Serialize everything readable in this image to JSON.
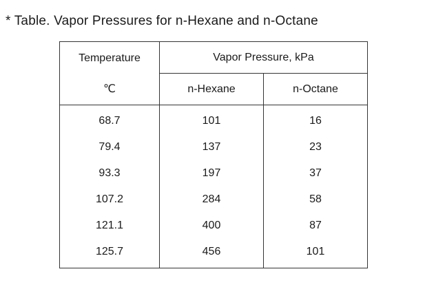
{
  "page": {
    "title": "* Table. Vapor Pressures for n-Hexane and n-Octane"
  },
  "table": {
    "header": {
      "temperature_label": "Temperature",
      "temperature_unit": "℃",
      "pressure_label": "Vapor Pressure, kPa",
      "col_hexane": "n-Hexane",
      "col_octane": "n-Octane"
    },
    "rows": [
      {
        "temp": "68.7",
        "hexane": "101",
        "octane": "16"
      },
      {
        "temp": "79.4",
        "hexane": "137",
        "octane": "23"
      },
      {
        "temp": "93.3",
        "hexane": "197",
        "octane": "37"
      },
      {
        "temp": "107.2",
        "hexane": "284",
        "octane": "58"
      },
      {
        "temp": "121.1",
        "hexane": "400",
        "octane": "87"
      },
      {
        "temp": "125.7",
        "hexane": "456",
        "octane": "101"
      }
    ]
  }
}
